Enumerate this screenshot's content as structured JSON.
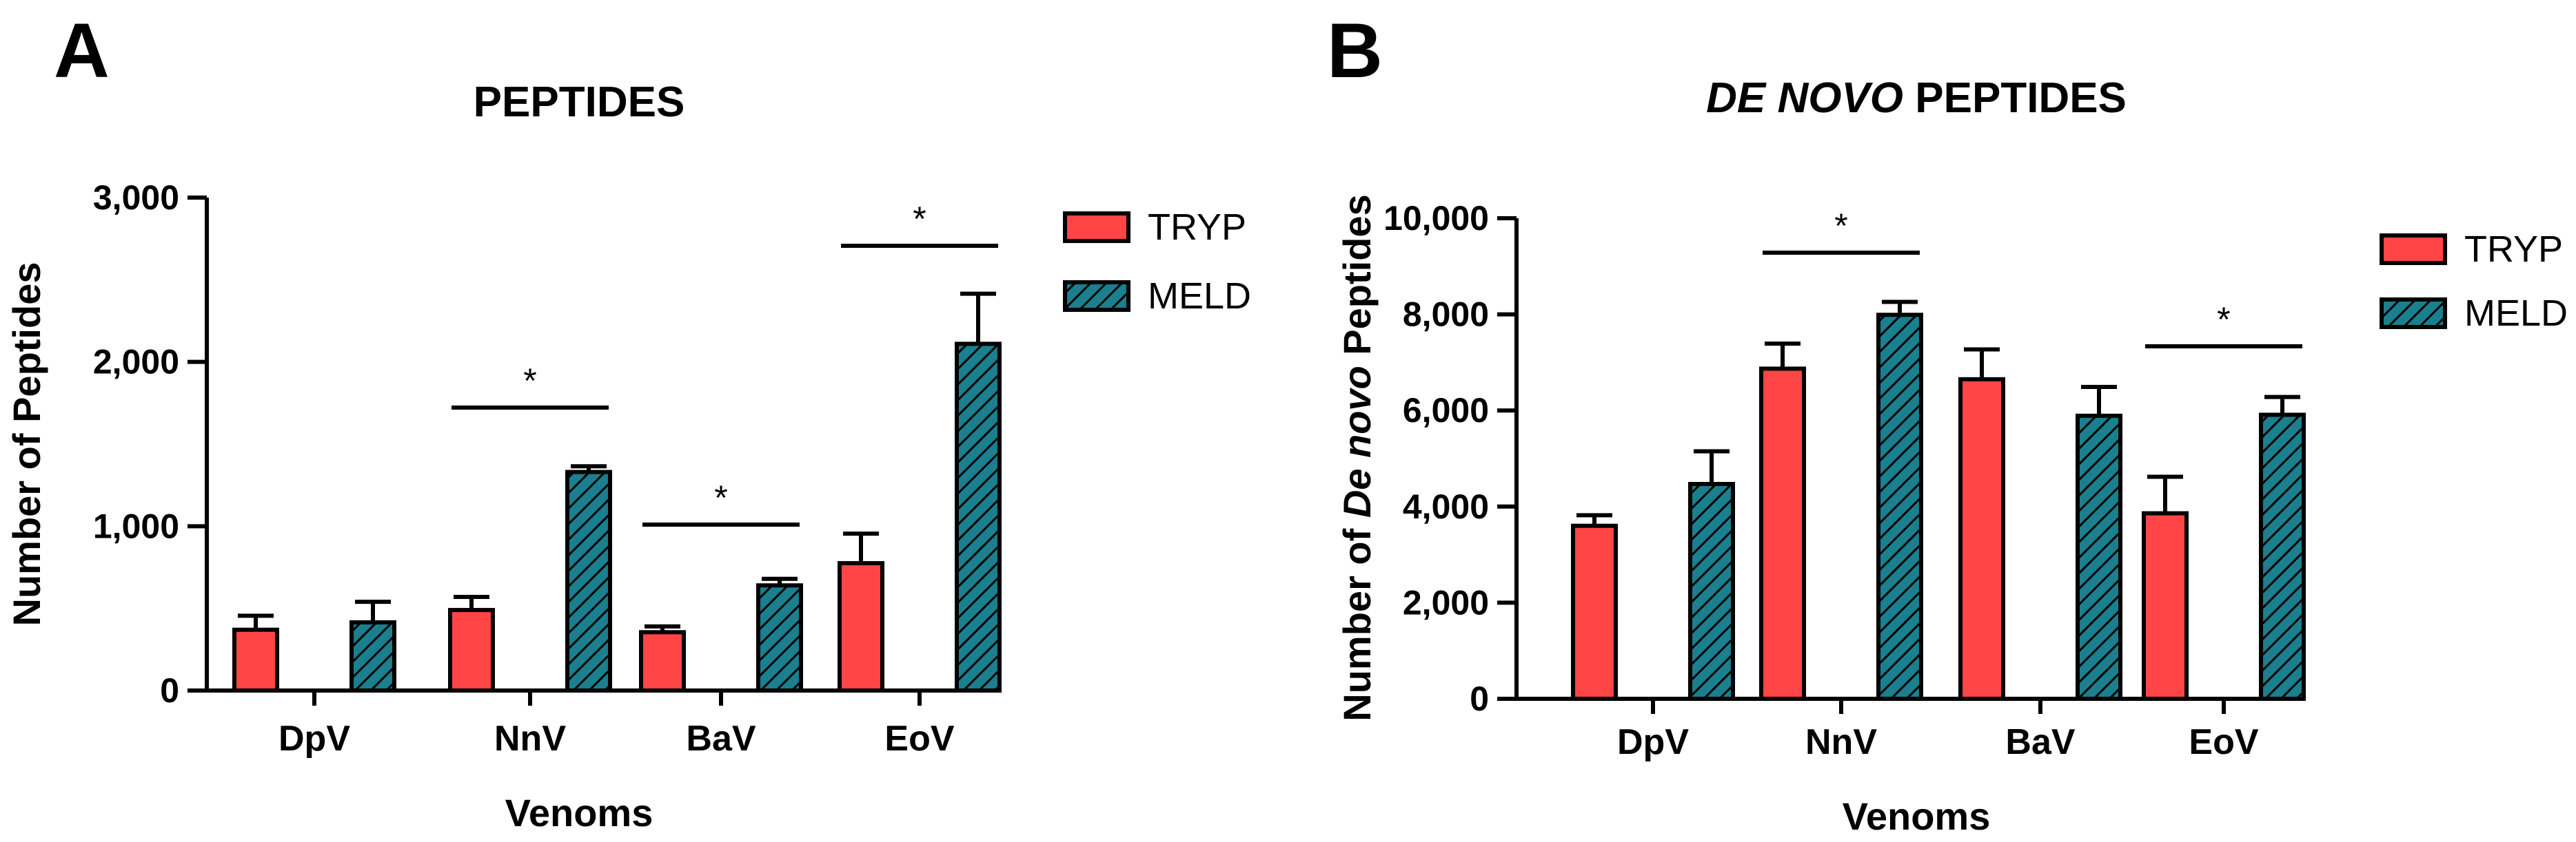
{
  "colors": {
    "tryp": "#FF4545",
    "meld": "#1A7F8E",
    "axis": "#000000"
  },
  "panels": [
    {
      "letter": "A",
      "title": "PEPTIDES"
    },
    {
      "letter": "B",
      "title_italic": "DE NOVO",
      "title_rest": " PEPTIDES"
    }
  ],
  "chart_data": [
    {
      "type": "bar",
      "title": "PEPTIDES",
      "categories": [
        "DpV",
        "NnV",
        "BaV",
        "EoV"
      ],
      "series": [
        {
          "name": "TRYP",
          "values": [
            370,
            490,
            355,
            775
          ],
          "errors": [
            85,
            80,
            35,
            180
          ]
        },
        {
          "name": "MELD",
          "values": [
            415,
            1330,
            640,
            2110
          ],
          "errors": [
            125,
            35,
            40,
            305
          ]
        }
      ],
      "xlabel": "Venoms",
      "ylabel": "Number of Peptides",
      "ylim": [
        0,
        3000
      ],
      "yticks": [
        0,
        1000,
        2000,
        3000
      ],
      "ytick_labels": [
        "0",
        "1,000",
        "2,000",
        "3,000"
      ],
      "significance": [
        {
          "category": "NnV",
          "label": "*"
        },
        {
          "category": "BaV",
          "label": "*"
        },
        {
          "category": "EoV",
          "label": "*"
        }
      ],
      "legend": "right"
    },
    {
      "type": "bar",
      "title": "DE NOVO PEPTIDES",
      "categories": [
        "DpV",
        "NnV",
        "BaV",
        "EoV"
      ],
      "series": [
        {
          "name": "TRYP",
          "values": [
            3600,
            6870,
            6650,
            3860
          ],
          "errors": [
            220,
            520,
            620,
            760
          ]
        },
        {
          "name": "MELD",
          "values": [
            4470,
            7990,
            5890,
            5910
          ],
          "errors": [
            680,
            270,
            600,
            370
          ]
        }
      ],
      "xlabel": "Venoms",
      "ylabel_prefix": "Number of ",
      "ylabel_italic": "De novo",
      "ylabel_suffix": " Peptides",
      "ylim": [
        0,
        10000
      ],
      "yticks": [
        0,
        2000,
        4000,
        6000,
        8000,
        10000
      ],
      "ytick_labels": [
        "0",
        "2,000",
        "4,000",
        "6,000",
        "8,000",
        "10,000"
      ],
      "significance": [
        {
          "category": "NnV",
          "label": "*"
        },
        {
          "category": "EoV",
          "label": "*"
        }
      ],
      "legend": "right"
    }
  ]
}
